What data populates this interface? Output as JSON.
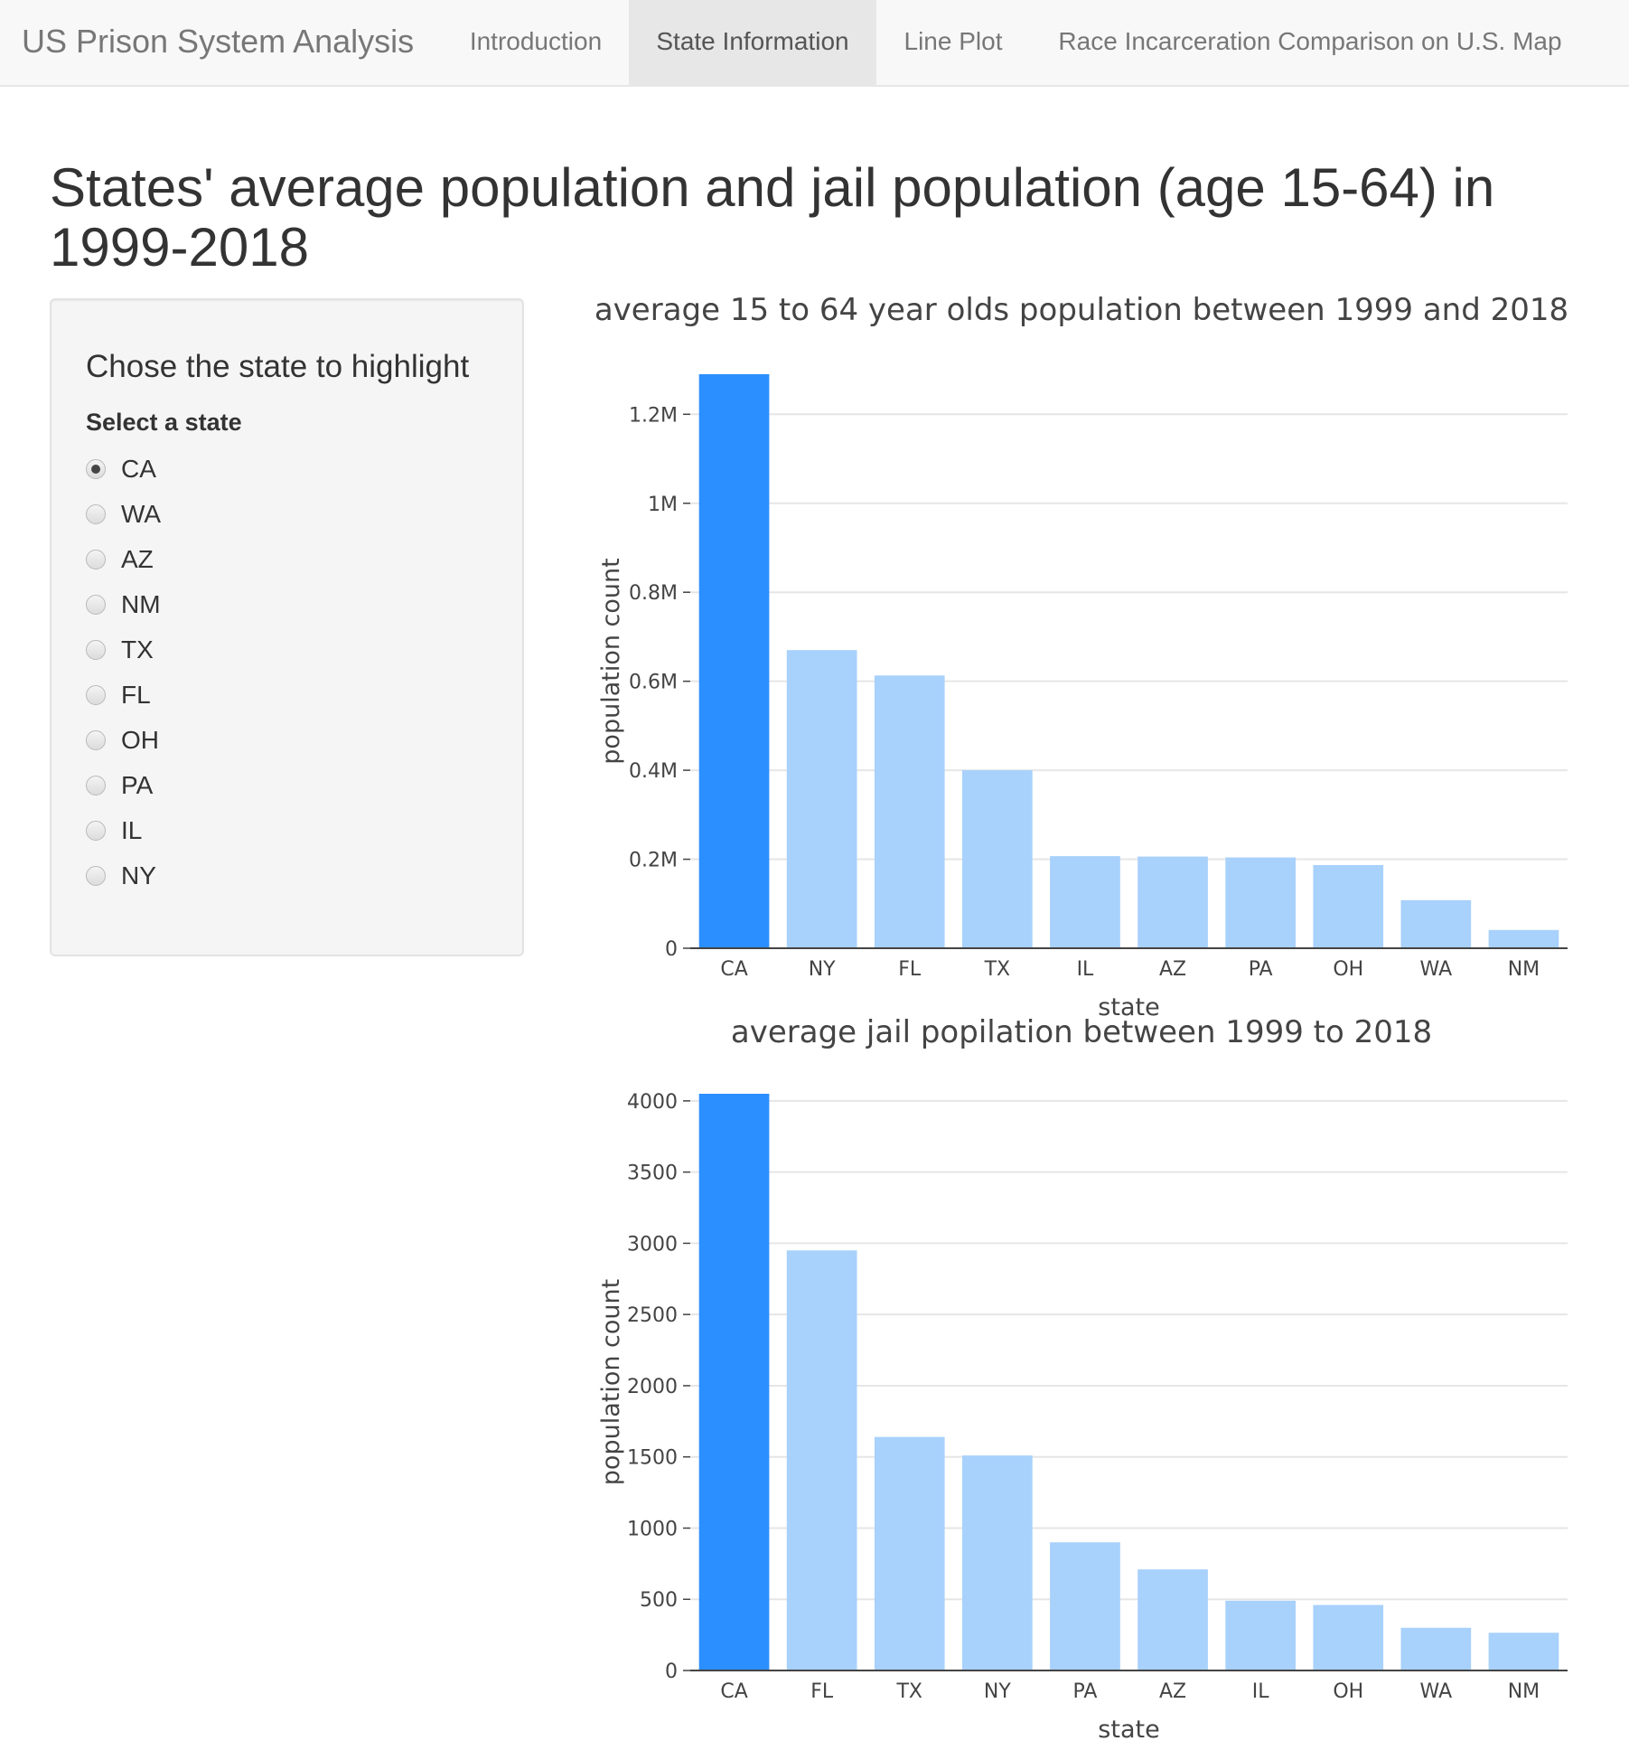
{
  "navbar": {
    "brand": "US Prison System Analysis",
    "tabs": [
      {
        "label": "Introduction",
        "active": false
      },
      {
        "label": "State Information",
        "active": true
      },
      {
        "label": "Line Plot",
        "active": false
      },
      {
        "label": "Race Incarceration Comparison on U.S. Map",
        "active": false
      }
    ]
  },
  "page": {
    "title": "States' average population and jail population (age 15-64) in 1999-2018"
  },
  "sidebar": {
    "heading": "Chose the state to highlight",
    "select_label": "Select a state",
    "selected": "CA",
    "options": [
      "CA",
      "WA",
      "AZ",
      "NM",
      "TX",
      "FL",
      "OH",
      "PA",
      "IL",
      "NY"
    ]
  },
  "colors": {
    "highlight": "#2b8fff",
    "normal": "#a8d1fc",
    "grid": "#e6e6e6"
  },
  "chart_data": [
    {
      "type": "bar",
      "title": "average 15 to 64 year olds population between 1999 and 2018",
      "xlabel": "state",
      "ylabel": "population count",
      "categories": [
        "CA",
        "NY",
        "FL",
        "TX",
        "IL",
        "AZ",
        "PA",
        "OH",
        "WA",
        "NM"
      ],
      "values": [
        1290000,
        670000,
        613000,
        400000,
        207000,
        206000,
        204000,
        187000,
        108000,
        41000
      ],
      "highlighted": "CA",
      "ylim": [
        0,
        1290000
      ],
      "yticks": [
        0,
        200000,
        400000,
        600000,
        800000,
        1000000,
        1200000
      ],
      "ytick_labels": [
        "0",
        "0.2M",
        "0.4M",
        "0.6M",
        "0.8M",
        "1M",
        "1.2M"
      ],
      "grid": true
    },
    {
      "type": "bar",
      "title": "average jail popilation between 1999 to 2018",
      "xlabel": "state",
      "ylabel": "population count",
      "categories": [
        "CA",
        "FL",
        "TX",
        "NY",
        "PA",
        "AZ",
        "IL",
        "OH",
        "WA",
        "NM"
      ],
      "values": [
        4050,
        2950,
        1640,
        1510,
        900,
        710,
        490,
        460,
        300,
        265
      ],
      "highlighted": "CA",
      "ylim": [
        0,
        4050
      ],
      "yticks": [
        0,
        500,
        1000,
        1500,
        2000,
        2500,
        3000,
        3500,
        4000
      ],
      "ytick_labels": [
        "0",
        "500",
        "1000",
        "1500",
        "2000",
        "2500",
        "3000",
        "3500",
        "4000"
      ],
      "grid": true
    }
  ]
}
